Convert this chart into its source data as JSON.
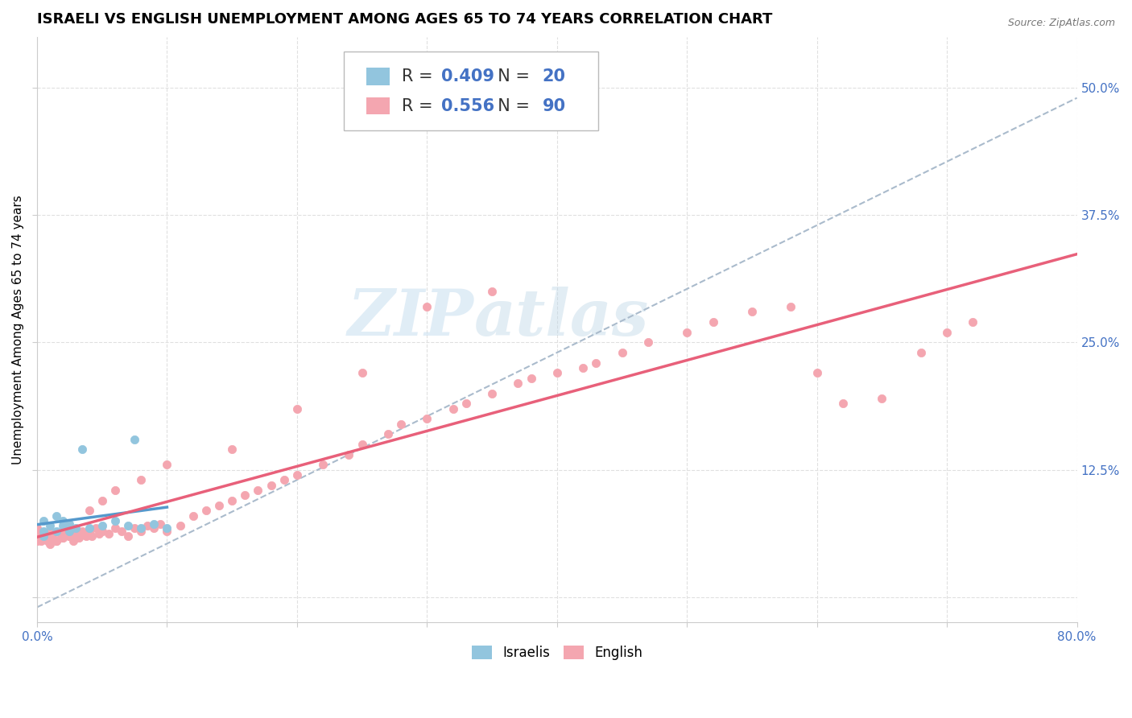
{
  "title": "ISRAELI VS ENGLISH UNEMPLOYMENT AMONG AGES 65 TO 74 YEARS CORRELATION CHART",
  "source": "Source: ZipAtlas.com",
  "ylabel": "Unemployment Among Ages 65 to 74 years",
  "xlim": [
    0.0,
    0.8
  ],
  "ylim": [
    -0.025,
    0.55
  ],
  "xtick_positions": [
    0.0,
    0.1,
    0.2,
    0.3,
    0.4,
    0.5,
    0.6,
    0.7,
    0.8
  ],
  "xticklabels": [
    "0.0%",
    "",
    "",
    "",
    "",
    "",
    "",
    "",
    "80.0%"
  ],
  "ytick_positions": [
    0.0,
    0.125,
    0.25,
    0.375,
    0.5
  ],
  "yticklabels": [
    "",
    "12.5%",
    "25.0%",
    "37.5%",
    "50.0%"
  ],
  "israeli_R": 0.409,
  "israeli_N": 20,
  "english_R": 0.556,
  "english_N": 90,
  "israeli_color": "#92c5de",
  "english_color": "#f4a6b0",
  "israeli_line_color": "#5599cc",
  "english_line_color": "#e8607a",
  "dashed_line_color": "#aabbcc",
  "israeli_scatter_x": [
    0.005,
    0.01,
    0.005,
    0.015,
    0.02,
    0.025,
    0.02,
    0.015,
    0.03,
    0.025,
    0.04,
    0.035,
    0.05,
    0.06,
    0.075,
    0.07,
    0.08,
    0.09,
    0.1,
    0.005
  ],
  "israeli_scatter_y": [
    0.065,
    0.07,
    0.075,
    0.065,
    0.07,
    0.065,
    0.075,
    0.08,
    0.068,
    0.072,
    0.068,
    0.145,
    0.07,
    0.075,
    0.155,
    0.07,
    0.068,
    0.072,
    0.068,
    0.06
  ],
  "english_scatter_x": [
    0.005,
    0.008,
    0.01,
    0.012,
    0.015,
    0.018,
    0.02,
    0.022,
    0.025,
    0.028,
    0.03,
    0.032,
    0.035,
    0.038,
    0.04,
    0.042,
    0.045,
    0.048,
    0.05,
    0.055,
    0.06,
    0.065,
    0.07,
    0.075,
    0.08,
    0.085,
    0.09,
    0.095,
    0.1,
    0.11,
    0.12,
    0.13,
    0.14,
    0.15,
    0.16,
    0.17,
    0.18,
    0.19,
    0.2,
    0.22,
    0.24,
    0.25,
    0.27,
    0.28,
    0.3,
    0.32,
    0.33,
    0.35,
    0.37,
    0.38,
    0.4,
    0.42,
    0.43,
    0.45,
    0.47,
    0.5,
    0.52,
    0.55,
    0.58,
    0.6,
    0.62,
    0.65,
    0.68,
    0.7,
    0.72,
    0.35,
    0.3,
    0.25,
    0.2,
    0.15,
    0.1,
    0.08,
    0.06,
    0.05,
    0.04,
    0.03,
    0.025,
    0.02,
    0.015,
    0.01,
    0.007,
    0.005,
    0.003,
    0.002,
    0.001,
    0.0,
    0.0,
    0.0,
    0.0,
    0.0
  ],
  "english_scatter_y": [
    0.06,
    0.055,
    0.065,
    0.06,
    0.055,
    0.062,
    0.058,
    0.065,
    0.06,
    0.055,
    0.062,
    0.058,
    0.065,
    0.06,
    0.065,
    0.06,
    0.068,
    0.062,
    0.065,
    0.062,
    0.068,
    0.065,
    0.06,
    0.068,
    0.065,
    0.07,
    0.068,
    0.072,
    0.065,
    0.07,
    0.08,
    0.085,
    0.09,
    0.095,
    0.1,
    0.105,
    0.11,
    0.115,
    0.12,
    0.13,
    0.14,
    0.15,
    0.16,
    0.17,
    0.175,
    0.185,
    0.19,
    0.2,
    0.21,
    0.215,
    0.22,
    0.225,
    0.23,
    0.24,
    0.25,
    0.26,
    0.27,
    0.28,
    0.285,
    0.22,
    0.19,
    0.195,
    0.24,
    0.26,
    0.27,
    0.3,
    0.285,
    0.22,
    0.185,
    0.145,
    0.13,
    0.115,
    0.105,
    0.095,
    0.085,
    0.065,
    0.06,
    0.058,
    0.055,
    0.052,
    0.06,
    0.06,
    0.055,
    0.058,
    0.06,
    0.065,
    0.068,
    0.055,
    0.06,
    0.058
  ],
  "watermark_zip": "ZIP",
  "watermark_atlas": "atlas",
  "background_color": "#ffffff",
  "grid_color": "#e0e0e0",
  "title_fontsize": 13,
  "axis_label_fontsize": 11,
  "tick_fontsize": 11,
  "tick_color": "#4472c4",
  "legend_fontsize": 15
}
